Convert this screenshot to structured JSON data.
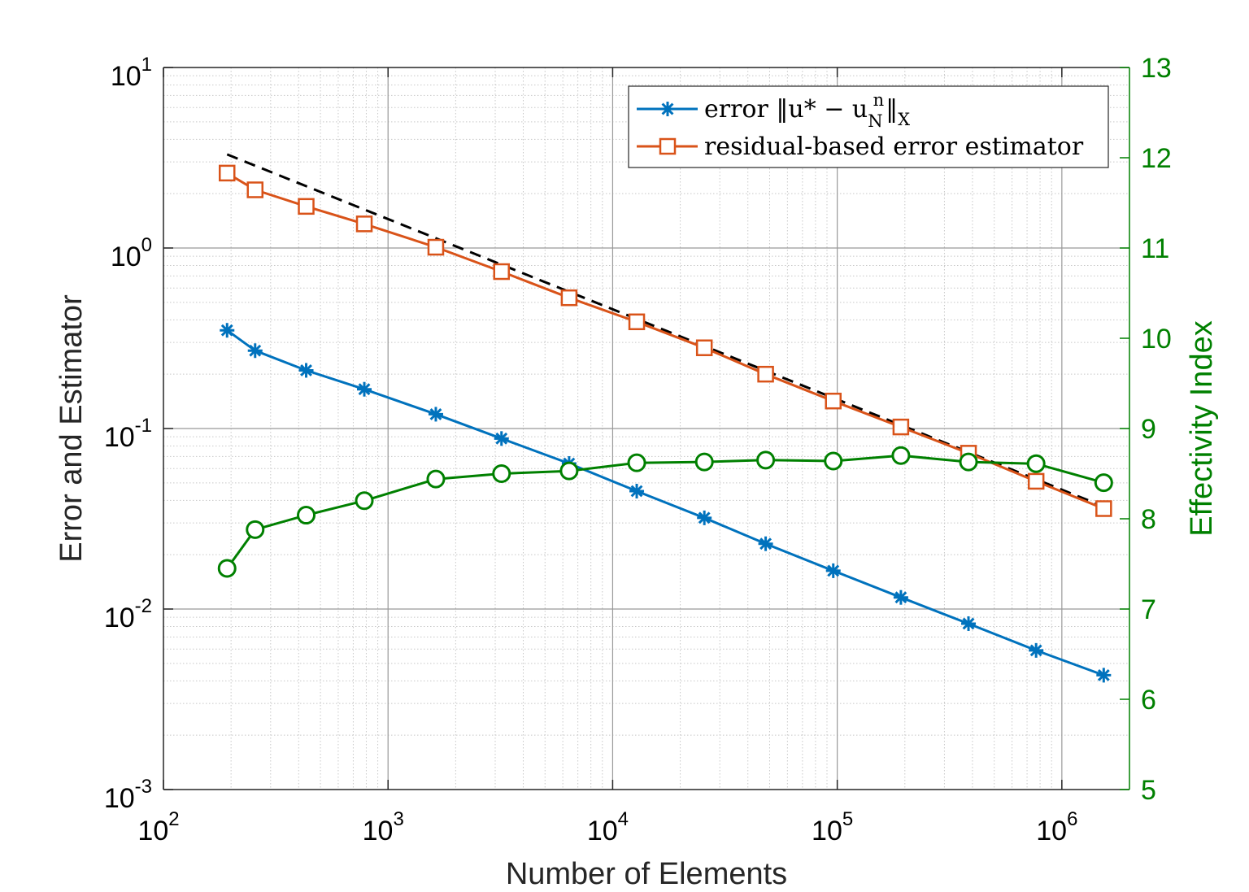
{
  "chart_data": {
    "type": "line",
    "xscale": "log",
    "yscale": "log",
    "xlabel": "Number of Elements",
    "ylabel": "Error and Estimator",
    "y2label": "Effectivity Index",
    "xlim": [
      100,
      2000000
    ],
    "ylim": [
      0.001,
      10
    ],
    "y2lim": [
      5,
      13
    ],
    "x_tick_labels": [
      {
        "base": "10",
        "exp": "2"
      },
      {
        "base": "10",
        "exp": "3"
      },
      {
        "base": "10",
        "exp": "4"
      },
      {
        "base": "10",
        "exp": "5"
      },
      {
        "base": "10",
        "exp": "6"
      }
    ],
    "y_tick_labels": [
      {
        "base": "10",
        "exp": "-3"
      },
      {
        "base": "10",
        "exp": "-2"
      },
      {
        "base": "10",
        "exp": "-1"
      },
      {
        "base": "10",
        "exp": "0"
      },
      {
        "base": "10",
        "exp": "1"
      }
    ],
    "y2_tick_labels": [
      "5",
      "6",
      "7",
      "8",
      "9",
      "10",
      "11",
      "12",
      "13"
    ],
    "grid": true,
    "legend_position": "top-right",
    "colors": {
      "error": "#0072BD",
      "estimator": "#D95319",
      "effectivity": "#008000",
      "reference": "#000000",
      "grid_major": "#999999",
      "grid_minor": "#c8c8c8"
    },
    "x": [
      192,
      256,
      432,
      784,
      1632,
      3200,
      6400,
      12800,
      25600,
      48000,
      96000,
      192000,
      384000,
      768000,
      1536000
    ],
    "series": [
      {
        "name": "error",
        "legend_label": "error ‖u* − u",
        "legend_sub": "N",
        "legend_sup": "n",
        "legend_tail": "‖",
        "legend_tail_sub": "X",
        "axis": "left",
        "marker": "asterisk",
        "values": [
          0.35,
          0.27,
          0.21,
          0.165,
          0.12,
          0.088,
          0.064,
          0.045,
          0.032,
          0.023,
          0.0163,
          0.0116,
          0.0083,
          0.0059,
          0.0043
        ]
      },
      {
        "name": "residual-based error estimator",
        "legend_label": "residual-based error estimator",
        "axis": "left",
        "marker": "square",
        "values": [
          2.6,
          2.1,
          1.7,
          1.36,
          1.01,
          0.74,
          0.53,
          0.39,
          0.28,
          0.2,
          0.142,
          0.102,
          0.073,
          0.051,
          0.036
        ]
      },
      {
        "name": "effectivity index",
        "axis": "right",
        "marker": "circle",
        "values": [
          7.45,
          7.88,
          8.04,
          8.2,
          8.44,
          8.5,
          8.53,
          8.62,
          8.63,
          8.65,
          8.64,
          8.7,
          8.63,
          8.61,
          8.4
        ]
      },
      {
        "name": "reference slope",
        "axis": "left",
        "style": "dashed",
        "x": [
          192,
          1536000
        ],
        "values": [
          3.3,
          0.037
        ]
      }
    ]
  }
}
